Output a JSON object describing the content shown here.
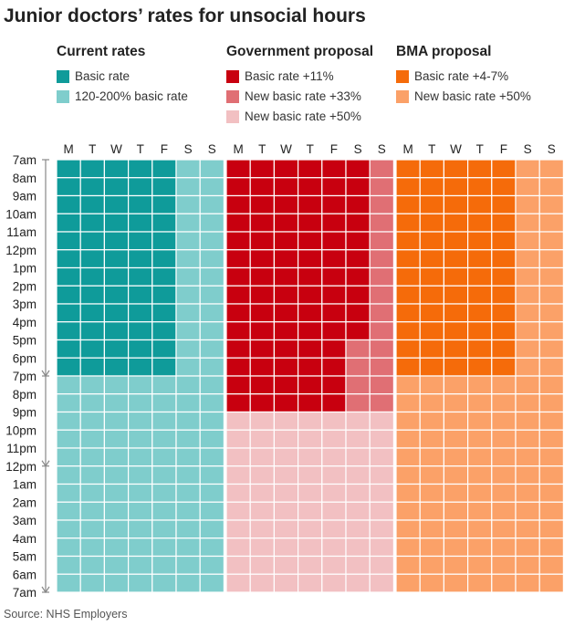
{
  "title": "Junior doctors’ rates for unsocial hours",
  "source": "Source: NHS Employers",
  "colors": {
    "current_basic": "#0f9b9a",
    "current_premium": "#7fcdcc",
    "gov_basic": "#c8000f",
    "gov_33": "#e06f74",
    "gov_50": "#f2c0c2",
    "bma_basic": "#f56b0a",
    "bma_50": "#fba168"
  },
  "legend": {
    "current": {
      "title": "Current rates",
      "items": [
        {
          "label": "Basic rate",
          "color_key": "current_basic"
        },
        {
          "label": "120-200% basic rate",
          "color_key": "current_premium"
        }
      ]
    },
    "government": {
      "title": "Government proposal",
      "items": [
        {
          "label": "Basic rate +11%",
          "color_key": "gov_basic"
        },
        {
          "label": "New basic rate +33%",
          "color_key": "gov_33"
        },
        {
          "label": "New basic rate +50%",
          "color_key": "gov_50"
        }
      ]
    },
    "bma": {
      "title": "BMA proposal",
      "items": [
        {
          "label": "Basic rate +4-7%",
          "color_key": "bma_basic"
        },
        {
          "label": "New basic rate +50%",
          "color_key": "bma_50"
        }
      ]
    }
  },
  "chart_data": {
    "type": "heatmap",
    "title": "Junior doctors’ rates for unsocial hours",
    "days": [
      "M",
      "T",
      "W",
      "T",
      "F",
      "S",
      "S"
    ],
    "hour_labels": [
      "7am",
      "8am",
      "9am",
      "10am",
      "11am",
      "12pm",
      "1pm",
      "2pm",
      "3pm",
      "4pm",
      "5pm",
      "6pm",
      "7pm",
      "8pm",
      "9pm",
      "10pm",
      "11pm",
      "12pm",
      "1am",
      "2am",
      "3am",
      "4am",
      "5am",
      "6am",
      "7am"
    ],
    "hour_label_ticks": [
      "12pm",
      "12pm",
      "7am"
    ],
    "hours_per_column": 24,
    "start_hour": "7am",
    "panels": [
      {
        "name": "Current rates",
        "rules": [
          {
            "days": [
              0,
              1,
              2,
              3,
              4
            ],
            "from_hour": 0,
            "to_hour": 12,
            "color_key": "current_basic"
          },
          {
            "days": [
              0,
              1,
              2,
              3,
              4
            ],
            "from_hour": 12,
            "to_hour": 24,
            "color_key": "current_premium"
          },
          {
            "days": [
              5,
              6
            ],
            "from_hour": 0,
            "to_hour": 24,
            "color_key": "current_premium"
          }
        ]
      },
      {
        "name": "Government proposal",
        "rules": [
          {
            "days": [
              0,
              1,
              2,
              3,
              4
            ],
            "from_hour": 0,
            "to_hour": 14,
            "color_key": "gov_basic"
          },
          {
            "days": [
              0,
              1,
              2,
              3,
              4
            ],
            "from_hour": 14,
            "to_hour": 24,
            "color_key": "gov_50"
          },
          {
            "days": [
              5
            ],
            "from_hour": 0,
            "to_hour": 10,
            "color_key": "gov_basic"
          },
          {
            "days": [
              5
            ],
            "from_hour": 10,
            "to_hour": 14,
            "color_key": "gov_33"
          },
          {
            "days": [
              5
            ],
            "from_hour": 14,
            "to_hour": 24,
            "color_key": "gov_50"
          },
          {
            "days": [
              6
            ],
            "from_hour": 0,
            "to_hour": 14,
            "color_key": "gov_33"
          },
          {
            "days": [
              6
            ],
            "from_hour": 14,
            "to_hour": 24,
            "color_key": "gov_50"
          }
        ]
      },
      {
        "name": "BMA proposal",
        "rules": [
          {
            "days": [
              0,
              1,
              2,
              3,
              4
            ],
            "from_hour": 0,
            "to_hour": 12,
            "color_key": "bma_basic"
          },
          {
            "days": [
              0,
              1,
              2,
              3,
              4
            ],
            "from_hour": 12,
            "to_hour": 24,
            "color_key": "bma_50"
          },
          {
            "days": [
              5,
              6
            ],
            "from_hour": 0,
            "to_hour": 24,
            "color_key": "bma_50"
          }
        ]
      }
    ]
  }
}
